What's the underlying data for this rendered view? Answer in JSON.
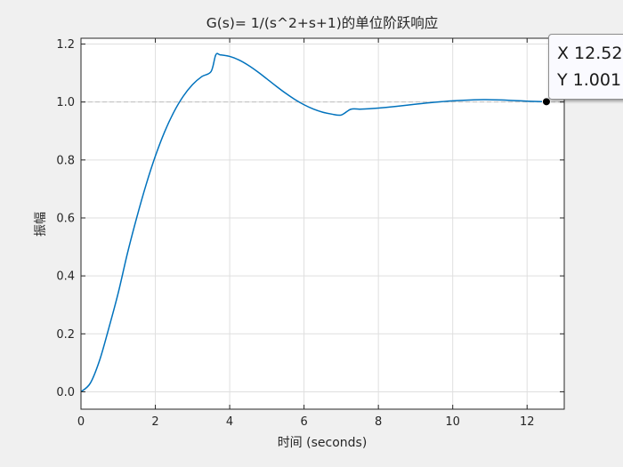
{
  "chart_data": {
    "type": "line",
    "title": "G(s)= 1/(s^2+s+1)的单位阶跃响应",
    "xlabel": "时间 (seconds)",
    "ylabel": "振幅",
    "xlim": [
      0,
      13
    ],
    "ylim": [
      -0.06,
      1.22
    ],
    "x_ticks": [
      0,
      2,
      4,
      6,
      8,
      10,
      12
    ],
    "y_ticks": [
      0.0,
      0.2,
      0.4,
      0.6,
      0.8,
      1.0,
      1.2
    ],
    "x_tick_labels": [
      "0",
      "2",
      "4",
      "6",
      "8",
      "10",
      "12"
    ],
    "y_tick_labels": [
      "0.0",
      "0.2",
      "0.4",
      "0.6",
      "0.8",
      "1.0",
      "1.2"
    ],
    "grid": true,
    "reference_line": {
      "y": 1.0,
      "style": "dashed",
      "color": "#c0c0c0"
    },
    "series": [
      {
        "color": "#0072bd",
        "x": [
          0,
          0.25,
          0.5,
          0.75,
          1.0,
          1.25,
          1.5,
          1.75,
          2.0,
          2.25,
          2.5,
          2.75,
          3.0,
          3.25,
          3.5,
          3.627,
          3.75,
          4.0,
          4.25,
          4.5,
          4.75,
          5.0,
          5.25,
          5.5,
          5.75,
          6.0,
          6.25,
          6.5,
          6.75,
          7.0,
          7.255,
          7.5,
          7.75,
          8.0,
          8.5,
          9.0,
          9.5,
          10.0,
          10.5,
          10.88,
          11.5,
          12.0,
          12.52
        ],
        "y": [
          0,
          0.0296,
          0.1085,
          0.2204,
          0.3403,
          0.4781,
          0.6014,
          0.7141,
          0.8131,
          0.8971,
          0.9658,
          1.0197,
          1.0599,
          1.0878,
          1.1052,
          1.163,
          1.1626,
          1.1573,
          1.1449,
          1.1267,
          1.1044,
          1.0798,
          1.0547,
          1.0307,
          1.009,
          0.9905,
          0.9757,
          0.9649,
          0.9581,
          0.9551,
          0.9749,
          0.9754,
          0.9767,
          0.979,
          0.9852,
          0.9925,
          0.9991,
          1.0041,
          1.0071,
          1.0081,
          1.006,
          1.003,
          1.001
        ]
      }
    ],
    "datatip": {
      "x": 12.52,
      "y": 1.001,
      "x_label": "X 12.52",
      "y_label": "Y 1.001"
    }
  }
}
